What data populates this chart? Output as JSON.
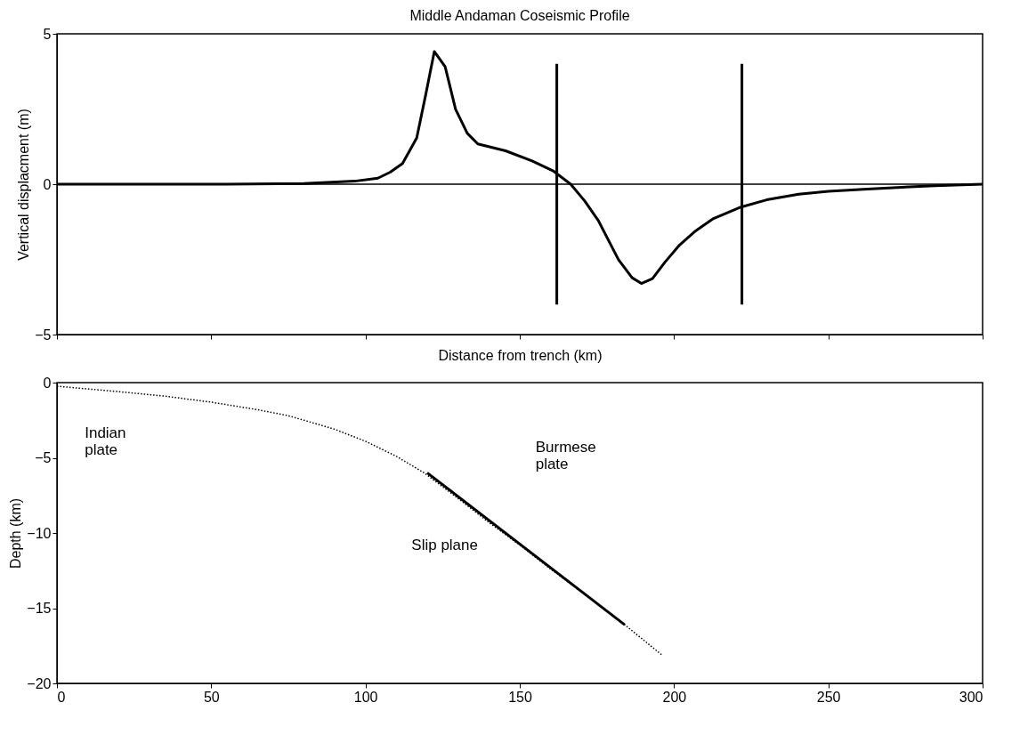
{
  "chart_data": [
    {
      "type": "line",
      "title": "Middle Andaman Coseismic Profile",
      "xlabel": "Distance from trench (km)",
      "ylabel": "Vertical displacment (m)",
      "xlim": [
        0,
        300
      ],
      "xticks": [
        0,
        50,
        100,
        150,
        200,
        250,
        300
      ],
      "ylim": [
        -5,
        5
      ],
      "yticks": [
        -5,
        0,
        5
      ],
      "tick_labels": "y",
      "series": [
        {
          "color": "#000000",
          "line_style": "solid",
          "x": [
            0,
            50,
            80,
            96.5,
            104,
            108,
            112,
            116.6,
            119.5,
            122.3,
            125.8,
            129.2,
            133,
            136.4,
            145.4,
            154,
            161,
            166.5,
            171,
            175.4,
            182,
            186.4,
            189.4,
            193,
            197,
            201.8,
            207,
            212.8,
            221.7,
            230,
            240.4,
            250,
            262.6,
            284.5,
            300
          ],
          "values": [
            0,
            0,
            0.02,
            0.1,
            0.2,
            0.4,
            0.69,
            1.54,
            2.97,
            4.41,
            3.91,
            2.49,
            1.69,
            1.34,
            1.11,
            0.77,
            0.43,
            0,
            -0.55,
            -1.2,
            -2.51,
            -3.11,
            -3.3,
            -3.14,
            -2.6,
            -2.02,
            -1.55,
            -1.14,
            -0.76,
            -0.52,
            -0.33,
            -0.24,
            -0.16,
            -0.05,
            0
          ]
        },
        {
          "color": "#000000",
          "line_style": "solid",
          "x": [
            162,
            162
          ],
          "values": [
            -4,
            4
          ]
        },
        {
          "color": "#000000",
          "line_style": "solid",
          "x": [
            222,
            222
          ],
          "values": [
            -4,
            4
          ]
        }
      ],
      "ref_lines": [
        {
          "axis": "y",
          "value": 0
        }
      ]
    },
    {
      "type": "line",
      "ylabel": "Depth (km)",
      "xlim": [
        0,
        300
      ],
      "xticks": [
        0,
        50,
        100,
        150,
        200,
        250,
        300
      ],
      "ylim": [
        -20,
        0
      ],
      "yticks": [
        -20,
        -15,
        -10,
        -5,
        0
      ],
      "series": [
        {
          "color": "#000000",
          "line_style": "dotted",
          "x": [
            0,
            20,
            35,
            50,
            65,
            75,
            90,
            100,
            110,
            119,
            130,
            140,
            150,
            160,
            170,
            184,
            196
          ],
          "values": [
            -0.24,
            -0.6,
            -0.9,
            -1.3,
            -1.8,
            -2.2,
            -3.1,
            -3.9,
            -4.9,
            -6,
            -7.7,
            -9.3,
            -10.8,
            -12.4,
            -13.9,
            -16.1,
            -18.1
          ]
        },
        {
          "color": "#000000",
          "line_style": "solid",
          "x": [
            120,
            184
          ],
          "values": [
            -6,
            -16.1
          ]
        }
      ],
      "annotations": [
        "Indian\nplate",
        "Burmese\nplate",
        "Slip plane"
      ]
    }
  ]
}
